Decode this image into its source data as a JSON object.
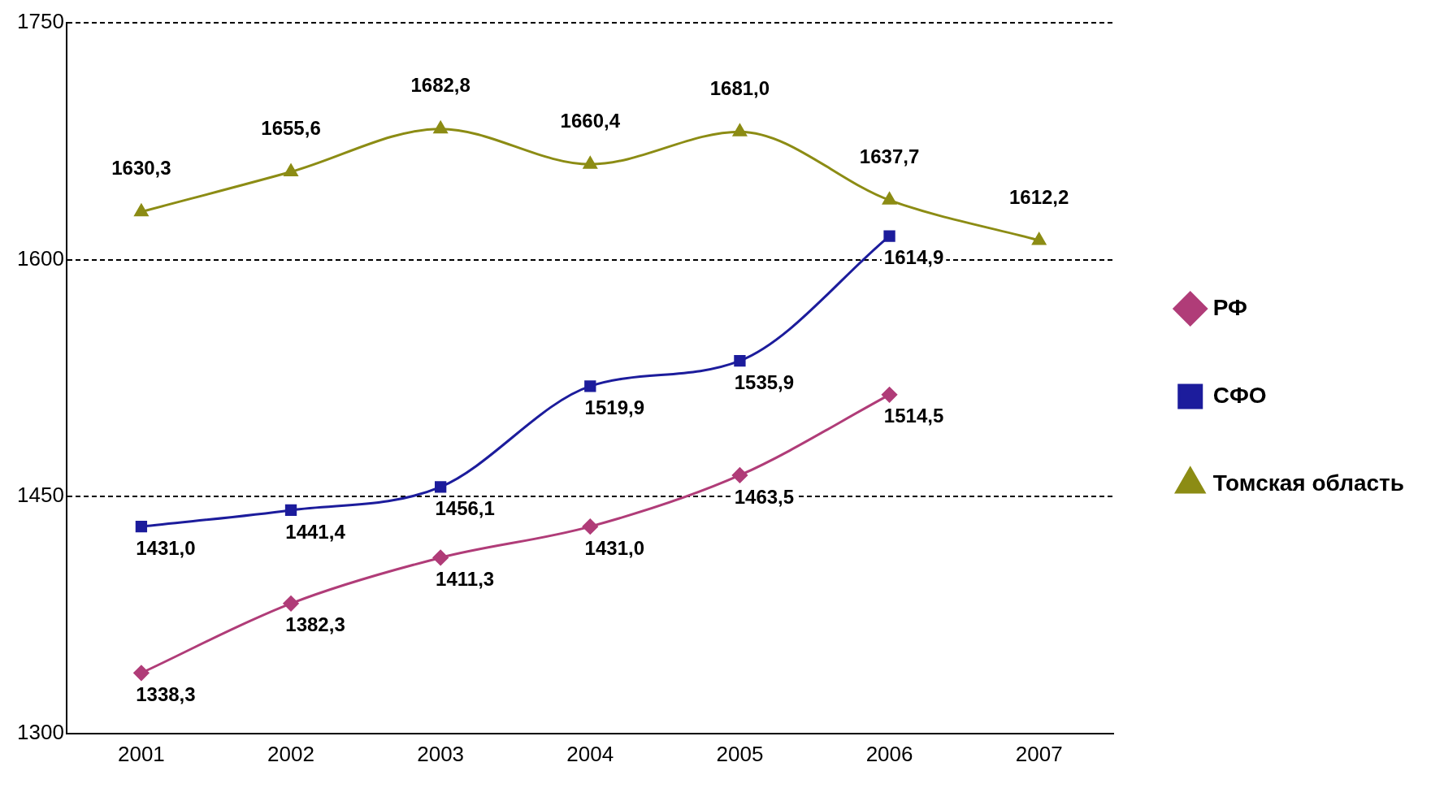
{
  "chart_data": {
    "type": "line",
    "categories": [
      "2001",
      "2002",
      "2003",
      "2004",
      "2005",
      "2006",
      "2007"
    ],
    "ylim": [
      1300,
      1750
    ],
    "yticks": [
      1300,
      1450,
      1600,
      1750
    ],
    "grid": "y",
    "legend": "right",
    "series": [
      {
        "name": "РФ",
        "color": "#b03c78",
        "marker": "diamond",
        "values": [
          1338.3,
          1382.3,
          1411.3,
          1431.0,
          1463.5,
          1514.5,
          null
        ],
        "value_labels": [
          "1338,3",
          "1382,3",
          "1411,3",
          "1431,0",
          "1463,5",
          "1514,5",
          null
        ]
      },
      {
        "name": "СФО",
        "color": "#1c1c9c",
        "marker": "square",
        "values": [
          1431.0,
          1441.4,
          1456.1,
          1519.9,
          1535.9,
          1614.9,
          null
        ],
        "value_labels": [
          "1431,0",
          "1441,4",
          "1456,1",
          "1519,9",
          "1535,9",
          "1614,9",
          null
        ]
      },
      {
        "name": "Томская область",
        "color": "#8c8c14",
        "marker": "triangle",
        "values": [
          1630.3,
          1655.6,
          1682.8,
          1660.4,
          1681.0,
          1637.7,
          1612.2
        ],
        "value_labels": [
          "1630,3",
          "1655,6",
          "1682,8",
          "1660,4",
          "1681,0",
          "1637,7",
          "1612,2"
        ]
      }
    ]
  }
}
